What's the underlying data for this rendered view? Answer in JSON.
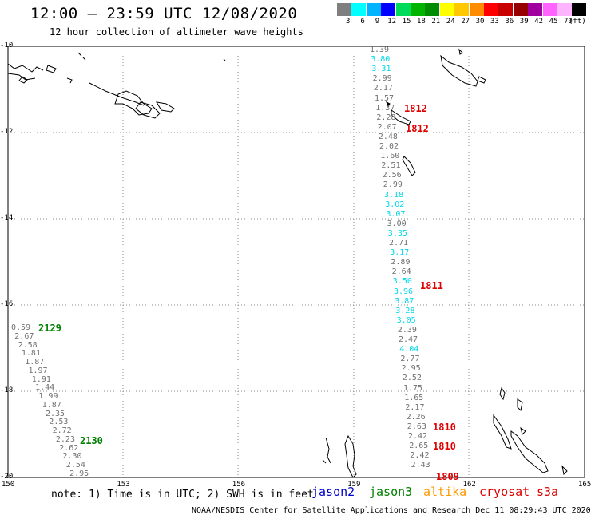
{
  "title": "12:00 – 23:59 UTC 12/08/2020",
  "subtitle": "12 hour collection of altimeter wave heights",
  "colorbar": {
    "unit": "(ft)",
    "bins": [
      {
        "color": "#7f7f7f",
        "label": "3"
      },
      {
        "color": "#00ffff",
        "label": "6"
      },
      {
        "color": "#00b4ff",
        "label": "9"
      },
      {
        "color": "#0000ff",
        "label": "12"
      },
      {
        "color": "#00dc5a",
        "label": "15"
      },
      {
        "color": "#00b400",
        "label": "18"
      },
      {
        "color": "#008c00",
        "label": "21"
      },
      {
        "color": "#ffff00",
        "label": "24"
      },
      {
        "color": "#ffc800",
        "label": "27"
      },
      {
        "color": "#ff8c00",
        "label": "30"
      },
      {
        "color": "#ff0000",
        "label": "33"
      },
      {
        "color": "#c80000",
        "label": "36"
      },
      {
        "color": "#960000",
        "label": "39"
      },
      {
        "color": "#a000a0",
        "label": "42"
      },
      {
        "color": "#ff64ff",
        "label": "45"
      },
      {
        "color": "#ffb4ff",
        "label": "70"
      },
      {
        "color": "#000000",
        "label": ""
      }
    ]
  },
  "axes": {
    "lat_labels": [
      "-10",
      "-12",
      "-14",
      "-16",
      "-18",
      "-20"
    ],
    "lon_labels": [
      "150",
      "153",
      "156",
      "159",
      "162",
      "165"
    ]
  },
  "track_left": {
    "pass_labels": [
      {
        "text": "2129",
        "color": "#008000"
      },
      {
        "text": "2130",
        "color": "#008000"
      }
    ],
    "values": [
      "0.59",
      "2.67",
      "2.58",
      "1.81",
      "1.87",
      "1.97",
      "1.91",
      "1.44",
      "1.99",
      "1.87",
      "2.35",
      "2.53",
      "2.72",
      "2.23",
      "2.62",
      "2.30",
      "2.54",
      "2.95"
    ]
  },
  "track_right": {
    "pass_labels": [
      {
        "text": "1812",
        "color": "#e00000"
      },
      {
        "text": "1812",
        "color": "#e00000"
      },
      {
        "text": "1811",
        "color": "#e00000"
      },
      {
        "text": "1810",
        "color": "#e00000"
      },
      {
        "text": "1810",
        "color": "#e00000"
      },
      {
        "text": "1809",
        "color": "#e00000"
      }
    ],
    "values": [
      {
        "v": "1.39",
        "c": "grey"
      },
      {
        "v": "3.80",
        "c": "cyan"
      },
      {
        "v": "3.31",
        "c": "cyan"
      },
      {
        "v": "2.99",
        "c": "grey"
      },
      {
        "v": "2.17",
        "c": "grey"
      },
      {
        "v": "1.57",
        "c": "grey"
      },
      {
        "v": "1.37",
        "c": "grey"
      },
      {
        "v": "2.28",
        "c": "grey"
      },
      {
        "v": "2.07",
        "c": "grey"
      },
      {
        "v": "2.48",
        "c": "grey"
      },
      {
        "v": "2.02",
        "c": "grey"
      },
      {
        "v": "1.60",
        "c": "grey"
      },
      {
        "v": "2.51",
        "c": "grey"
      },
      {
        "v": "2.56",
        "c": "grey"
      },
      {
        "v": "2.99",
        "c": "grey"
      },
      {
        "v": "3.18",
        "c": "cyan"
      },
      {
        "v": "3.02",
        "c": "cyan"
      },
      {
        "v": "3.07",
        "c": "cyan"
      },
      {
        "v": "3.00",
        "c": "grey"
      },
      {
        "v": "3.35",
        "c": "cyan"
      },
      {
        "v": "2.71",
        "c": "grey"
      },
      {
        "v": "3.17",
        "c": "cyan"
      },
      {
        "v": "2.89",
        "c": "grey"
      },
      {
        "v": "2.64",
        "c": "grey"
      },
      {
        "v": "3.50",
        "c": "cyan"
      },
      {
        "v": "3.96",
        "c": "cyan"
      },
      {
        "v": "3.87",
        "c": "cyan"
      },
      {
        "v": "3.28",
        "c": "cyan"
      },
      {
        "v": "3.05",
        "c": "cyan"
      },
      {
        "v": "2.39",
        "c": "grey"
      },
      {
        "v": "2.47",
        "c": "grey"
      },
      {
        "v": "4.04",
        "c": "cyan"
      },
      {
        "v": "2.77",
        "c": "grey"
      },
      {
        "v": "2.95",
        "c": "grey"
      },
      {
        "v": "2.52",
        "c": "grey"
      },
      {
        "v": "1.75",
        "c": "grey"
      },
      {
        "v": "1.65",
        "c": "grey"
      },
      {
        "v": "2.17",
        "c": "grey"
      },
      {
        "v": "2.26",
        "c": "grey"
      },
      {
        "v": "2.63",
        "c": "grey"
      },
      {
        "v": "2.42",
        "c": "grey"
      },
      {
        "v": "2.65",
        "c": "grey"
      },
      {
        "v": "2.42",
        "c": "grey"
      },
      {
        "v": "2.43",
        "c": "grey"
      }
    ]
  },
  "note": "note: 1) Time is in UTC; 2) SWH is in feet",
  "satellites": [
    {
      "name": "jason2",
      "color": "#0000cc"
    },
    {
      "name": "jason3",
      "color": "#008000"
    },
    {
      "name": "altika",
      "color": "#ff9900"
    },
    {
      "name": "cryosat",
      "color": "#e00000"
    },
    {
      "name": "s3a",
      "color": "#e00000"
    }
  ],
  "credit": "NOAA/NESDIS Center for Satellite Applications and Research    Dec 11 08:29:43 UTC 2020"
}
